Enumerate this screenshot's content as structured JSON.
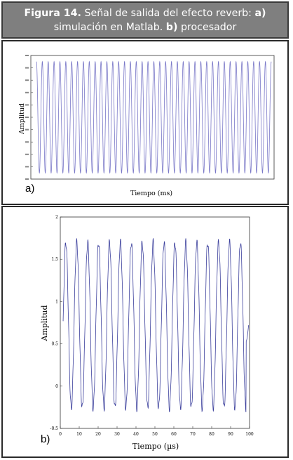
{
  "caption": {
    "figure": "Figura 14.",
    "line1": "Señal de salida del efecto reverb:",
    "label_a": "a)",
    "line2": "simulación en Matlab.",
    "label_b": "b)",
    "line3": "procesador"
  },
  "colors": {
    "header_bg": "#7f7f7f",
    "signal": "#7a78c8"
  },
  "panels": {
    "a_label": "a)",
    "b_label": "b)"
  },
  "chart_data": [
    {
      "type": "line",
      "xlabel": "Tiempo (ms)",
      "ylabel": "Amplitud",
      "ylim": [
        -1,
        1
      ],
      "cycles": 40,
      "amplitude": 0.9,
      "grid": false,
      "legend": "none"
    },
    {
      "type": "line",
      "xlabel": "Tiempo (µs)",
      "ylabel": "Amplitud",
      "xlim": [
        0,
        100
      ],
      "ylim": [
        -0.5,
        2
      ],
      "xticks": [
        "0",
        "10",
        "20",
        "30",
        "40",
        "50",
        "60",
        "70",
        "80",
        "90",
        "100"
      ],
      "yticks": [
        "-0.5",
        "0",
        "0.5",
        "1",
        "1.5",
        "2"
      ],
      "cycles": 17,
      "center": 0.72,
      "amplitude": 0.98,
      "grid": false,
      "legend": "none"
    }
  ]
}
